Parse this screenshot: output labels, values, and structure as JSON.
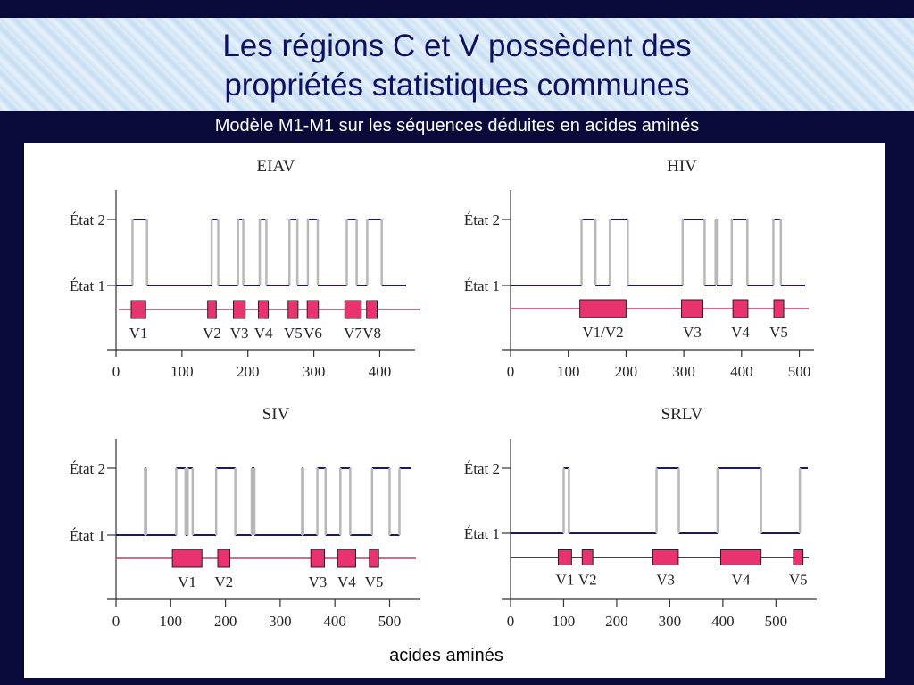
{
  "slide": {
    "title_line1": "Les régions C et V possèdent des",
    "title_line2": "propriétés statistiques communes",
    "subtitle": "Modèle M1-M1 sur les séquences déduites en acides aminés",
    "xlabel": "acides aminés"
  },
  "colors": {
    "background": "#0a0a3a",
    "state_line": "#1a1a5c",
    "transition": "#b8b8b8",
    "region_fill": "#e8336e",
    "region_line": "#d0336a"
  },
  "chart_data": [
    {
      "type": "step",
      "title": "EIAV",
      "ylabels": [
        "État 2",
        "État 1"
      ],
      "xlim": [
        0,
        440
      ],
      "xticks": [
        0,
        100,
        200,
        300,
        400
      ],
      "state_segments": [
        {
          "state": 1,
          "start": 0,
          "end": 25
        },
        {
          "state": 2,
          "start": 25,
          "end": 47
        },
        {
          "state": 1,
          "start": 47,
          "end": 145
        },
        {
          "state": 2,
          "start": 145,
          "end": 155
        },
        {
          "state": 1,
          "start": 155,
          "end": 185
        },
        {
          "state": 2,
          "start": 185,
          "end": 193
        },
        {
          "state": 1,
          "start": 193,
          "end": 218
        },
        {
          "state": 2,
          "start": 218,
          "end": 228
        },
        {
          "state": 1,
          "start": 228,
          "end": 263
        },
        {
          "state": 2,
          "start": 263,
          "end": 275
        },
        {
          "state": 1,
          "start": 275,
          "end": 291
        },
        {
          "state": 2,
          "start": 291,
          "end": 306
        },
        {
          "state": 1,
          "start": 306,
          "end": 350
        },
        {
          "state": 2,
          "start": 350,
          "end": 365
        },
        {
          "state": 1,
          "start": 365,
          "end": 381
        },
        {
          "state": 2,
          "start": 381,
          "end": 403
        },
        {
          "state": 1,
          "start": 403,
          "end": 440
        }
      ],
      "regions": [
        {
          "label": "V1",
          "start": 23,
          "end": 45
        },
        {
          "label": "V2",
          "start": 139,
          "end": 152
        },
        {
          "label": "V3",
          "start": 178,
          "end": 196
        },
        {
          "label": "V4",
          "start": 216,
          "end": 231
        },
        {
          "label": "V5",
          "start": 261,
          "end": 276
        },
        {
          "label": "V6",
          "start": 290,
          "end": 307
        },
        {
          "label": "V7",
          "start": 347,
          "end": 372
        },
        {
          "label": "V8",
          "start": 380,
          "end": 396
        }
      ],
      "region_line_color": "#d0336a"
    },
    {
      "type": "step",
      "title": "HIV",
      "ylabels": [
        "État 2",
        "État 1"
      ],
      "xlim": [
        0,
        510
      ],
      "xticks": [
        0,
        100,
        200,
        300,
        400,
        500
      ],
      "state_segments": [
        {
          "state": 1,
          "start": 0,
          "end": 123
        },
        {
          "state": 2,
          "start": 123,
          "end": 147
        },
        {
          "state": 1,
          "start": 147,
          "end": 172
        },
        {
          "state": 2,
          "start": 172,
          "end": 203
        },
        {
          "state": 1,
          "start": 203,
          "end": 298
        },
        {
          "state": 2,
          "start": 298,
          "end": 336
        },
        {
          "state": 1,
          "start": 336,
          "end": 355
        },
        {
          "state": 2,
          "start": 355,
          "end": 357
        },
        {
          "state": 1,
          "start": 357,
          "end": 383
        },
        {
          "state": 2,
          "start": 383,
          "end": 410
        },
        {
          "state": 1,
          "start": 410,
          "end": 455
        },
        {
          "state": 2,
          "start": 455,
          "end": 468
        },
        {
          "state": 1,
          "start": 468,
          "end": 510
        }
      ],
      "regions": [
        {
          "label": "V1/V2",
          "start": 120,
          "end": 200
        },
        {
          "label": "V3",
          "start": 296,
          "end": 333
        },
        {
          "label": "V4",
          "start": 385,
          "end": 411
        },
        {
          "label": "V5",
          "start": 456,
          "end": 473
        }
      ],
      "region_line_color": "#d0336a"
    },
    {
      "type": "step",
      "title": "SIV",
      "ylabels": [
        "État 2",
        "État 1"
      ],
      "xlim": [
        0,
        540
      ],
      "xticks": [
        0,
        100,
        200,
        300,
        400,
        500
      ],
      "state_segments": [
        {
          "state": 1,
          "start": 0,
          "end": 53
        },
        {
          "state": 2,
          "start": 53,
          "end": 55
        },
        {
          "state": 1,
          "start": 55,
          "end": 110
        },
        {
          "state": 2,
          "start": 110,
          "end": 127
        },
        {
          "state": 1,
          "start": 127,
          "end": 131
        },
        {
          "state": 2,
          "start": 131,
          "end": 140
        },
        {
          "state": 1,
          "start": 140,
          "end": 183
        },
        {
          "state": 2,
          "start": 183,
          "end": 218
        },
        {
          "state": 1,
          "start": 218,
          "end": 248
        },
        {
          "state": 2,
          "start": 248,
          "end": 253
        },
        {
          "state": 1,
          "start": 253,
          "end": 340
        },
        {
          "state": 2,
          "start": 340,
          "end": 342
        },
        {
          "state": 1,
          "start": 342,
          "end": 368
        },
        {
          "state": 2,
          "start": 368,
          "end": 383
        },
        {
          "state": 1,
          "start": 383,
          "end": 410
        },
        {
          "state": 2,
          "start": 410,
          "end": 428
        },
        {
          "state": 1,
          "start": 428,
          "end": 468
        },
        {
          "state": 2,
          "start": 468,
          "end": 500
        },
        {
          "state": 1,
          "start": 500,
          "end": 518
        },
        {
          "state": 2,
          "start": 518,
          "end": 540
        }
      ],
      "regions": [
        {
          "label": "V1",
          "start": 103,
          "end": 157
        },
        {
          "label": "V2",
          "start": 186,
          "end": 208
        },
        {
          "label": "V3",
          "start": 356,
          "end": 381
        },
        {
          "label": "V4",
          "start": 405,
          "end": 438
        },
        {
          "label": "V5",
          "start": 463,
          "end": 480
        }
      ],
      "region_line_color": "#d0336a"
    },
    {
      "type": "step",
      "title": "SRLV",
      "ylabels": [
        "État 2",
        "État 1"
      ],
      "xlim": [
        0,
        560
      ],
      "xticks": [
        0,
        100,
        200,
        300,
        400,
        500
      ],
      "state_segments": [
        {
          "state": 1,
          "start": 0,
          "end": 100
        },
        {
          "state": 2,
          "start": 100,
          "end": 110
        },
        {
          "state": 1,
          "start": 110,
          "end": 275
        },
        {
          "state": 2,
          "start": 275,
          "end": 317
        },
        {
          "state": 1,
          "start": 317,
          "end": 390
        },
        {
          "state": 2,
          "start": 390,
          "end": 472
        },
        {
          "state": 1,
          "start": 472,
          "end": 545
        },
        {
          "state": 2,
          "start": 545,
          "end": 560
        }
      ],
      "regions": [
        {
          "label": "V1",
          "start": 90,
          "end": 115
        },
        {
          "label": "V2",
          "start": 135,
          "end": 155
        },
        {
          "label": "V3",
          "start": 268,
          "end": 316
        },
        {
          "label": "V4",
          "start": 396,
          "end": 472
        },
        {
          "label": "V5",
          "start": 533,
          "end": 551
        }
      ],
      "region_line_color": "#000000"
    }
  ]
}
